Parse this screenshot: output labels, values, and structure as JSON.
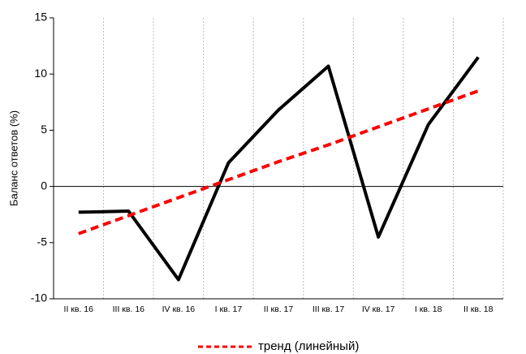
{
  "chart_data": {
    "type": "line",
    "y_label": "Баланс ответов (%)",
    "categories": [
      "II кв. 16",
      "III кв. 16",
      "IV кв. 16",
      "I кв. 17",
      "II кв. 17",
      "III кв. 17",
      "IV кв. 17",
      "I кв. 18",
      "II кв. 18"
    ],
    "series": [
      {
        "color": "#000000",
        "values": [
          -2.3,
          -2.2,
          -8.3,
          2.1,
          6.8,
          10.7,
          -4.5,
          5.5,
          11.5
        ]
      },
      {
        "name": "тренд (линейный)",
        "color": "#ff0000",
        "dashed": true,
        "values": [
          -4.2,
          -2.6,
          -1.0,
          0.6,
          2.2,
          3.7,
          5.3,
          6.9,
          8.5
        ]
      }
    ],
    "ylim": [
      -10,
      15
    ],
    "yticks": [
      -10,
      -5,
      0,
      5,
      10,
      15
    ],
    "legend": "bottom"
  }
}
